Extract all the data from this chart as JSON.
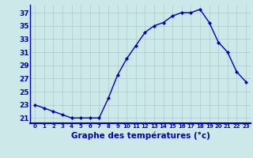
{
  "hours": [
    0,
    1,
    2,
    3,
    4,
    5,
    6,
    7,
    8,
    9,
    10,
    11,
    12,
    13,
    14,
    15,
    16,
    17,
    18,
    19,
    20,
    21,
    22,
    23
  ],
  "temperatures": [
    23,
    22.5,
    22,
    21.5,
    21,
    21,
    21,
    21,
    24,
    27.5,
    30,
    32,
    34,
    35,
    35.5,
    36.5,
    37,
    37,
    37.5,
    35.5,
    32.5,
    31,
    28,
    26.5
  ],
  "bg_color": "#cce8e8",
  "line_color": "#0000bb",
  "marker_color": "#0000bb",
  "grid_color": "#aacccc",
  "xlabel": "Graphe des températures (°c)",
  "separator_color": "#0000bb",
  "yticks": [
    21,
    23,
    25,
    27,
    29,
    31,
    33,
    35,
    37
  ],
  "ytick_labels": [
    "21",
    "23",
    "25",
    "27",
    "29",
    "31",
    "33",
    "35",
    "37"
  ],
  "ylim": [
    20.2,
    38.2
  ],
  "xlim": [
    -0.5,
    23.5
  ]
}
